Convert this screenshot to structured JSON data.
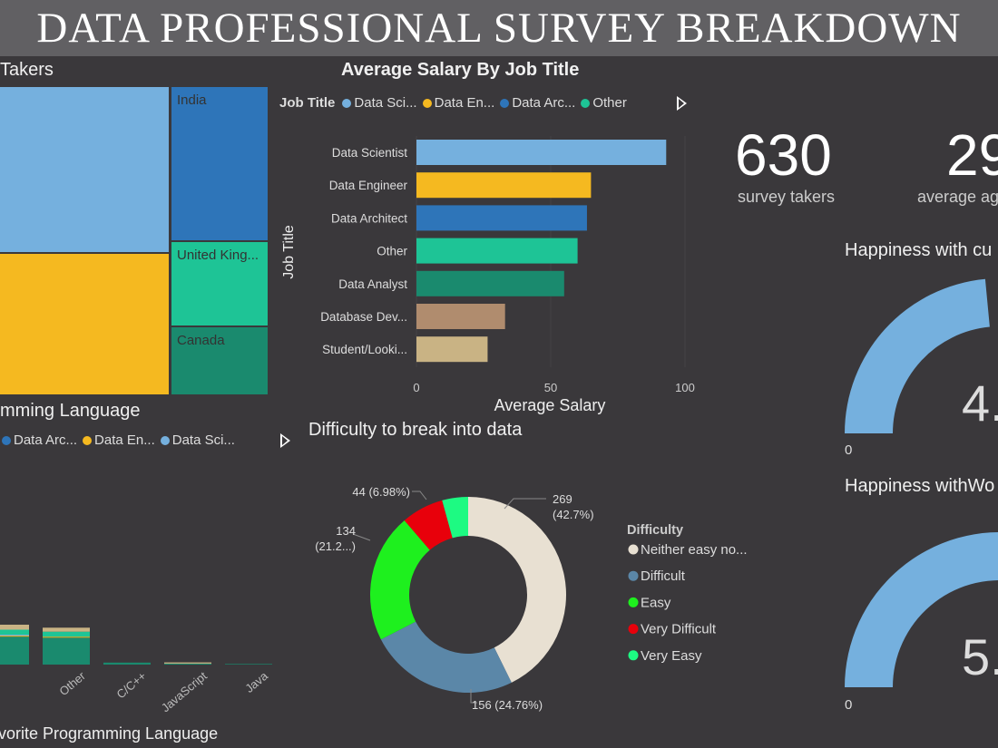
{
  "header": {
    "title": "DATA PROFESSIONAL SURVEY BREAKDOWN"
  },
  "kpis": [
    {
      "value": "630",
      "label": "survey takers"
    },
    {
      "value": "29",
      "label": "average ag"
    }
  ],
  "colors": {
    "light_blue": "#75b0de",
    "yellow": "#f5b920",
    "blue": "#2e75b9",
    "teal": "#1ec496",
    "dark_teal": "#1a8a6e",
    "tan": "#b08c6e",
    "khaki": "#c9b384"
  },
  "treemap": {
    "title": "Takers",
    "cells": [
      {
        "label": "",
        "color": "#75b0de"
      },
      {
        "label": "",
        "color": "#f5b920"
      },
      {
        "label": "India",
        "color": "#2e75b9"
      },
      {
        "label": "United King...",
        "color": "#1ec496"
      },
      {
        "label": "Canada",
        "color": "#1a8a6e"
      }
    ]
  },
  "chart_data": [
    {
      "type": "bar",
      "orientation": "horizontal",
      "title": "Average Salary By Job Title",
      "xlabel": "Average Salary",
      "ylabel": "Job Title",
      "legend": {
        "title": "Job Title",
        "items": [
          "Data Sci...",
          "Data En...",
          "Data Arc...",
          "Other"
        ],
        "colors": [
          "#75b0de",
          "#f5b920",
          "#2e75b9",
          "#1ec496"
        ],
        "placement": "top"
      },
      "categories": [
        "Data Scientist",
        "Data Engineer",
        "Data Architect",
        "Other",
        "Data Analyst",
        "Database Dev...",
        "Student/Looki..."
      ],
      "values": [
        93,
        65,
        63.5,
        60,
        55,
        33,
        26.5
      ],
      "colors": [
        "#75b0de",
        "#f5b920",
        "#2e75b9",
        "#1ec496",
        "#1a8a6e",
        "#b08c6e",
        "#c9b384"
      ],
      "xlim": [
        0,
        100
      ],
      "xticks": [
        "0",
        "50",
        "100"
      ]
    },
    {
      "type": "pie",
      "donut": true,
      "title": "Difficulty to break into data",
      "legend": {
        "title": "Difficulty",
        "placement": "right"
      },
      "slices": [
        {
          "name": "Neither easy no...",
          "value": 269,
          "label": "269",
          "label2": "(42.7%)",
          "color": "#e8e0d2"
        },
        {
          "name": "Difficult",
          "value": 156,
          "label": "156 (24.76%)",
          "label2": "",
          "color": "#5b87a8"
        },
        {
          "name": "Easy",
          "value": 134,
          "label": "134",
          "label2": "(21.2...)",
          "color": "#1ef01e"
        },
        {
          "name": "Very Difficult",
          "value": 44,
          "label": "44 (6.98%)",
          "label2": "",
          "color": "#e8000b"
        },
        {
          "name": "Very Easy",
          "value": 27,
          "label": "",
          "label2": "",
          "color": "#1dfa82"
        }
      ]
    },
    {
      "type": "bar",
      "stacked": true,
      "title": "mming Language",
      "xlabel": "vorite Programming Language",
      "legend": {
        "items": [
          "Data Arc...",
          "Data En...",
          "Data Sci..."
        ],
        "colors": [
          "#2e75b9",
          "#f5b920",
          "#75b0de"
        ],
        "placement": "top"
      },
      "categories": [
        "",
        "Other",
        "C/C++",
        "JavaScript",
        "Java"
      ],
      "segment_colors": [
        "#1a8a6e",
        "#f5b920",
        "#75b0de",
        "#1ec496",
        "#c9b384"
      ],
      "stacks": [
        [
          28,
          1,
          1,
          5,
          5
        ],
        [
          27,
          1,
          0,
          5,
          4
        ],
        [
          2,
          0,
          0,
          0,
          0
        ],
        [
          1,
          0,
          0,
          0,
          1.2
        ],
        [
          0.6,
          0,
          0,
          0,
          0
        ]
      ]
    },
    {
      "type": "gauge",
      "title": "Happiness with cu",
      "value_text": "4.",
      "min_label": "0",
      "fill_fraction": 0.47
    },
    {
      "type": "gauge",
      "title": "Happiness withWo",
      "value_text": "5.",
      "min_label": "0",
      "fill_fraction": 0.55
    }
  ]
}
